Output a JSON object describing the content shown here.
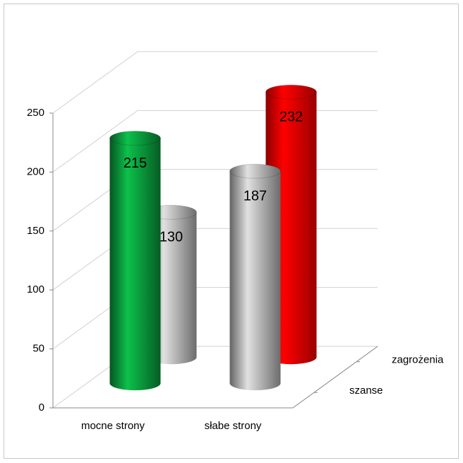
{
  "chart_data": {
    "type": "bar3d",
    "categories": [
      "mocne strony",
      "słabe strony"
    ],
    "series": [
      {
        "name": "szanse",
        "colors": [
          "#0a9a3c",
          "#b4b4b4"
        ],
        "values": [
          215,
          187
        ]
      },
      {
        "name": "zagrożenia",
        "colors": [
          "#b4b4b4",
          "#ff0000"
        ],
        "values": [
          130,
          232
        ]
      }
    ],
    "ylim": [
      0,
      250
    ],
    "yticks": [
      0,
      50,
      100,
      150,
      200,
      250
    ],
    "grid": true
  }
}
